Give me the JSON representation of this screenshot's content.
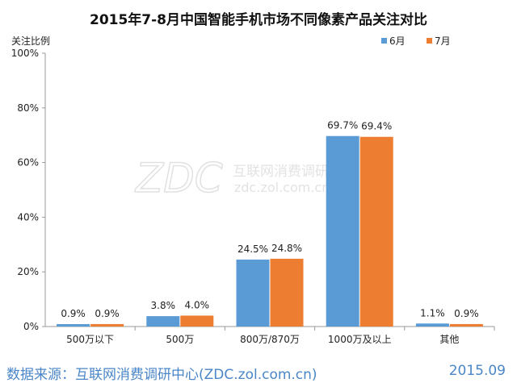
{
  "chart_data": {
    "type": "bar",
    "title": "2015年7-8月中国智能手机市场不同像素产品关注对比",
    "ylabel": "关注比例",
    "xlabel": "",
    "categories": [
      "500万以下",
      "500万",
      "800万/870万",
      "1000万及以上",
      "其他"
    ],
    "series": [
      {
        "name": "6月",
        "values": [
          0.9,
          3.8,
          24.5,
          69.7,
          1.1
        ],
        "labels": [
          "0.9%",
          "3.8%",
          "24.5%",
          "69.7%",
          "1.1%"
        ],
        "color": "#5b9bd5"
      },
      {
        "name": "7月",
        "values": [
          0.9,
          4.0,
          24.8,
          69.4,
          0.9
        ],
        "labels": [
          "0.9%",
          "4.0%",
          "24.8%",
          "69.4%",
          "0.9%"
        ],
        "color": "#ed7d31"
      }
    ],
    "ylim": [
      0,
      100
    ],
    "yticks": [
      0,
      20,
      40,
      60,
      80,
      100
    ],
    "ytick_labels": [
      "0%",
      "20%",
      "40%",
      "60%",
      "80%",
      "100%"
    ],
    "grid": false,
    "legend_position": "top-right"
  },
  "watermark": {
    "logo": "ZDC",
    "cn": "互联网消费调研中心",
    "url": "zdc.zol.com.cn"
  },
  "footer": {
    "source": "数据来源：互联网消费调研中心(ZDC.zol.com.cn)",
    "date": "2015.09"
  }
}
